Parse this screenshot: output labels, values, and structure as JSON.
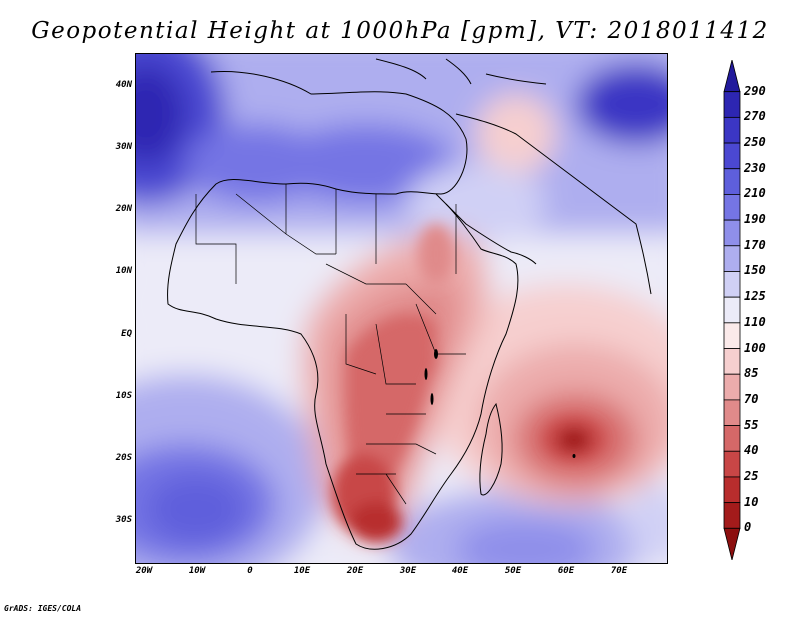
{
  "title": "Geopotential Height at 1000hPa [gpm], VT: 2018011412",
  "credit": "GrADS: IGES/COLA",
  "latitude_labels": [
    "40N",
    "30N",
    "20N",
    "10N",
    "EQ",
    "10S",
    "20S",
    "30S"
  ],
  "longitude_labels": [
    "20W",
    "10W",
    "0",
    "10E",
    "20E",
    "30E",
    "40E",
    "50E",
    "60E",
    "70E"
  ],
  "colorbar": {
    "labels": [
      "290",
      "270",
      "250",
      "230",
      "210",
      "190",
      "170",
      "150",
      "125",
      "110",
      "100",
      "85",
      "70",
      "55",
      "40",
      "25",
      "10",
      "0"
    ],
    "colors": [
      "#221a9c",
      "#2d26b2",
      "#3b36c4",
      "#4b48d2",
      "#5e5fdc",
      "#7575e4",
      "#8f8fea",
      "#aeaeef",
      "#d0d0f5",
      "#ecebf8",
      "#fbeaea",
      "#f6cfcf",
      "#ecacac",
      "#e08a8a",
      "#d56868",
      "#c84646",
      "#b82d2d",
      "#a31b1b",
      "#8c0f0f"
    ]
  }
}
